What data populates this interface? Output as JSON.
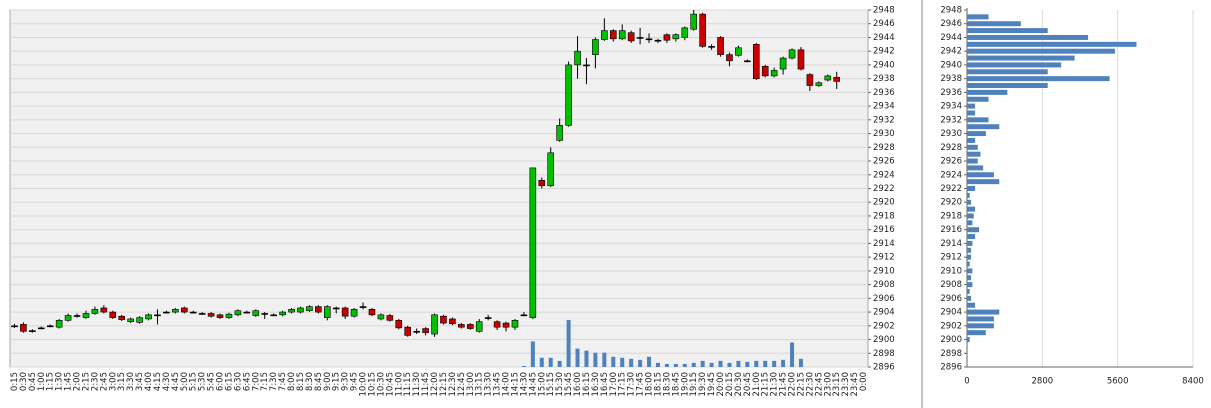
{
  "chart_data": [
    {
      "type": "candlestick",
      "categories": [
        "0:15",
        "0:30",
        "0:45",
        "1:00",
        "1:15",
        "1:30",
        "1:45",
        "2:00",
        "2:15",
        "2:30",
        "2:45",
        "3:00",
        "3:15",
        "3:30",
        "3:45",
        "4:00",
        "4:15",
        "4:30",
        "4:45",
        "5:00",
        "5:15",
        "5:30",
        "5:45",
        "6:00",
        "6:15",
        "6:30",
        "6:45",
        "7:00",
        "7:15",
        "7:30",
        "7:45",
        "8:00",
        "8:15",
        "8:30",
        "8:45",
        "9:00",
        "9:15",
        "9:30",
        "9:45",
        "10:00",
        "10:15",
        "10:30",
        "10:45",
        "11:00",
        "11:15",
        "11:30",
        "11:45",
        "12:00",
        "12:15",
        "12:30",
        "12:45",
        "13:00",
        "13:15",
        "13:30",
        "13:45",
        "14:00",
        "14:15",
        "14:30",
        "14:45",
        "15:00",
        "15:15",
        "15:30",
        "15:45",
        "16:00",
        "16:15",
        "16:30",
        "16:45",
        "17:00",
        "17:15",
        "17:30",
        "17:45",
        "18:00",
        "18:15",
        "18:30",
        "18:45",
        "19:00",
        "19:15",
        "19:30",
        "19:45",
        "20:00",
        "20:15",
        "20:30",
        "20:45",
        "21:00",
        "21:15",
        "21:30",
        "21:45",
        "22:00",
        "22:15",
        "22:30",
        "22:45",
        "23:00",
        "23:15",
        "23:30",
        "23:45",
        "0:00"
      ],
      "ohlc": [
        [
          2902,
          2902.3,
          2901.7,
          2902
        ],
        [
          2902.2,
          2902.5,
          2901,
          2901.2
        ],
        [
          2901.3,
          2901.5,
          2901,
          2901.3
        ],
        [
          2901.7,
          2901.9,
          2901.5,
          2901.7
        ],
        [
          2902,
          2902.2,
          2901.8,
          2902
        ],
        [
          2901.8,
          2903,
          2901.6,
          2902.8
        ],
        [
          2902.8,
          2903.8,
          2902.6,
          2903.5
        ],
        [
          2903.5,
          2903.8,
          2903.2,
          2903.5
        ],
        [
          2903.2,
          2904.2,
          2903,
          2903.8
        ],
        [
          2903.8,
          2904.8,
          2903.6,
          2904.4
        ],
        [
          2904.6,
          2905,
          2903.8,
          2904
        ],
        [
          2904,
          2904.2,
          2903,
          2903.2
        ],
        [
          2903.4,
          2903.6,
          2902.7,
          2902.9
        ],
        [
          2902.6,
          2903.2,
          2902.4,
          2903
        ],
        [
          2902.5,
          2903.4,
          2902.3,
          2903.2
        ],
        [
          2903,
          2903.8,
          2902.8,
          2903.6
        ],
        [
          2903.6,
          2904.4,
          2902.2,
          2903.6
        ],
        [
          2904,
          2904.2,
          2903.8,
          2904
        ],
        [
          2904,
          2904.6,
          2903.8,
          2904.4
        ],
        [
          2904.6,
          2904.8,
          2903.8,
          2904
        ],
        [
          2904,
          2904.2,
          2903.8,
          2904
        ],
        [
          2903.8,
          2904,
          2903.6,
          2903.8
        ],
        [
          2903.8,
          2904,
          2903.2,
          2903.4
        ],
        [
          2903.6,
          2903.8,
          2903,
          2903.2
        ],
        [
          2903.2,
          2903.9,
          2903,
          2903.7
        ],
        [
          2903.6,
          2904.4,
          2903.4,
          2904.2
        ],
        [
          2904,
          2904.2,
          2903.8,
          2904
        ],
        [
          2903.5,
          2904.4,
          2903.3,
          2904.2
        ],
        [
          2903.8,
          2904,
          2903,
          2903.8
        ],
        [
          2903.6,
          2903.8,
          2903.4,
          2903.6
        ],
        [
          2903.6,
          2904.2,
          2903.4,
          2904
        ],
        [
          2904,
          2904.6,
          2903.8,
          2904.4
        ],
        [
          2904,
          2904.8,
          2903.8,
          2904.6
        ],
        [
          2904.2,
          2905,
          2904,
          2904.8
        ],
        [
          2904.8,
          2905,
          2903.8,
          2904
        ],
        [
          2903.2,
          2905,
          2902.8,
          2904.8
        ],
        [
          2904.6,
          2904.8,
          2903.8,
          2904.6
        ],
        [
          2904.6,
          2904.8,
          2903,
          2903.4
        ],
        [
          2903.4,
          2904.6,
          2903.2,
          2904.4
        ],
        [
          2904.8,
          2905.4,
          2904.4,
          2904.8
        ],
        [
          2904.4,
          2904.6,
          2903.4,
          2903.6
        ],
        [
          2903,
          2903.8,
          2902.8,
          2903.6
        ],
        [
          2903.5,
          2903.7,
          2902.6,
          2902.8
        ],
        [
          2902.8,
          2903,
          2901.5,
          2901.7
        ],
        [
          2901.8,
          2902,
          2900.4,
          2900.6
        ],
        [
          2901.2,
          2901.6,
          2900.8,
          2901.2
        ],
        [
          2901.6,
          2901.8,
          2900.6,
          2901
        ],
        [
          2900.8,
          2903.8,
          2900.4,
          2903.6
        ],
        [
          2903.4,
          2903.6,
          2902.2,
          2902.4
        ],
        [
          2903,
          2903.2,
          2902.1,
          2902.3
        ],
        [
          2902.2,
          2902.4,
          2901.6,
          2901.8
        ],
        [
          2902.2,
          2902.4,
          2901.4,
          2901.6
        ],
        [
          2901.2,
          2903,
          2901,
          2902.6
        ],
        [
          2903.2,
          2903.6,
          2902.8,
          2903.2
        ],
        [
          2902.6,
          2902.8,
          2901.4,
          2901.8
        ],
        [
          2902.4,
          2902.6,
          2901.2,
          2901.8
        ],
        [
          2901.8,
          2903,
          2901.4,
          2902.8
        ],
        [
          2903.6,
          2904,
          2903.4,
          2903.6
        ],
        [
          2903.2,
          2925,
          2903,
          2925
        ],
        [
          2923.2,
          2923.6,
          2922,
          2922.4
        ],
        [
          2922.4,
          2928,
          2922.2,
          2927.2
        ],
        [
          2929,
          2932.2,
          2928.8,
          2931.2
        ],
        [
          2931.2,
          2940.5,
          2931,
          2940
        ],
        [
          2940,
          2944.2,
          2938,
          2942
        ],
        [
          2940,
          2941,
          2937.2,
          2940
        ],
        [
          2941.5,
          2944,
          2939.5,
          2943.7
        ],
        [
          2943.7,
          2946.8,
          2943.5,
          2945
        ],
        [
          2945,
          2945.2,
          2943.4,
          2943.8
        ],
        [
          2943.8,
          2945.9,
          2943.6,
          2945
        ],
        [
          2944.7,
          2945,
          2943.2,
          2943.5
        ],
        [
          2944,
          2945.4,
          2943,
          2944
        ],
        [
          2943.8,
          2944.6,
          2943.2,
          2943.8
        ],
        [
          2943.6,
          2943.8,
          2943.2,
          2943.6
        ],
        [
          2944.4,
          2944.6,
          2943.2,
          2943.6
        ],
        [
          2943.8,
          2944.6,
          2943.4,
          2944.4
        ],
        [
          2944,
          2945.6,
          2943.6,
          2945.4
        ],
        [
          2945.2,
          2948,
          2945,
          2947.4
        ],
        [
          2947.4,
          2947.6,
          2942.5,
          2942.7
        ],
        [
          2942.7,
          2943,
          2942.2,
          2942.7
        ],
        [
          2944,
          2944.2,
          2941.2,
          2941.5
        ],
        [
          2941.5,
          2941.8,
          2939.8,
          2940.6
        ],
        [
          2941.4,
          2942.8,
          2941.2,
          2942.5
        ],
        [
          2940.6,
          2940.8,
          2940.4,
          2940.6
        ],
        [
          2943,
          2943.2,
          2937.8,
          2938
        ],
        [
          2939.8,
          2940,
          2938.2,
          2938.4
        ],
        [
          2938.4,
          2939.6,
          2938.2,
          2939.2
        ],
        [
          2939.4,
          2941.2,
          2938.6,
          2941
        ],
        [
          2941,
          2942.4,
          2940.8,
          2942.2
        ],
        [
          2942.2,
          2942.6,
          2939.2,
          2939.4
        ],
        [
          2938.6,
          2938.8,
          2936.2,
          2937
        ],
        [
          2937,
          2937.6,
          2936.8,
          2937.4
        ],
        [
          2937.8,
          2938.6,
          2937.6,
          2938.4
        ],
        [
          2938.2,
          2939,
          2936.5,
          2937.6
        ],
        null,
        null,
        null
      ],
      "volume": [
        0,
        0,
        0,
        0,
        0,
        0,
        0,
        0,
        0,
        0,
        0,
        0,
        0,
        0,
        0,
        0,
        0,
        0,
        0,
        0,
        0,
        0,
        0,
        0,
        0,
        0,
        0,
        0,
        0,
        0,
        0,
        0,
        0,
        0,
        0,
        0,
        0,
        0,
        0,
        0,
        0,
        0,
        0,
        0,
        0,
        0,
        0,
        0,
        0,
        0,
        0,
        0,
        0,
        0,
        0,
        0,
        0,
        1,
        25,
        9,
        9,
        6,
        46,
        18,
        16,
        14,
        14,
        10,
        9,
        8,
        7,
        10,
        4,
        3,
        3,
        3,
        4,
        6,
        4,
        6,
        4,
        6,
        5,
        6,
        6,
        6,
        7,
        24,
        8,
        0,
        0,
        0,
        0,
        null,
        null,
        null
      ],
      "ylim": [
        2896,
        2948
      ],
      "yticks": [
        2896,
        2898,
        2900,
        2902,
        2904,
        2906,
        2908,
        2910,
        2912,
        2914,
        2916,
        2918,
        2920,
        2922,
        2924,
        2926,
        2928,
        2930,
        2932,
        2934,
        2936,
        2938,
        2940,
        2942,
        2944,
        2946,
        2948
      ],
      "grid": true,
      "up_color": "#00c000",
      "down_color": "#c80000",
      "volume_color": "#4f81bd"
    },
    {
      "type": "hbar",
      "y": [
        2900,
        2901,
        2902,
        2903,
        2904,
        2905,
        2906,
        2907,
        2908,
        2909,
        2910,
        2911,
        2912,
        2913,
        2914,
        2915,
        2916,
        2917,
        2918,
        2919,
        2920,
        2921,
        2922,
        2923,
        2924,
        2925,
        2926,
        2927,
        2928,
        2929,
        2930,
        2931,
        2932,
        2933,
        2934,
        2935,
        2936,
        2937,
        2938,
        2939,
        2940,
        2941,
        2942,
        2943,
        2944,
        2945,
        2946,
        2947
      ],
      "values": [
        100,
        700,
        1000,
        1000,
        1200,
        300,
        150,
        100,
        200,
        150,
        200,
        100,
        150,
        150,
        200,
        300,
        450,
        200,
        250,
        300,
        150,
        100,
        300,
        1200,
        1000,
        600,
        400,
        500,
        400,
        300,
        700,
        1200,
        800,
        300,
        300,
        800,
        1500,
        3000,
        5300,
        3000,
        3500,
        4000,
        5500,
        6300,
        4500,
        3000,
        2000,
        800
      ],
      "xlim": [
        0,
        8400
      ],
      "xticks": [
        0,
        2800,
        5600,
        8400
      ],
      "ylim": [
        2896,
        2948
      ],
      "yticks": [
        2896,
        2898,
        2900,
        2902,
        2904,
        2906,
        2908,
        2910,
        2912,
        2914,
        2916,
        2918,
        2920,
        2922,
        2924,
        2926,
        2928,
        2930,
        2932,
        2934,
        2936,
        2938,
        2940,
        2942,
        2944,
        2946,
        2948
      ],
      "grid": true,
      "color": "#4f81bd"
    }
  ]
}
